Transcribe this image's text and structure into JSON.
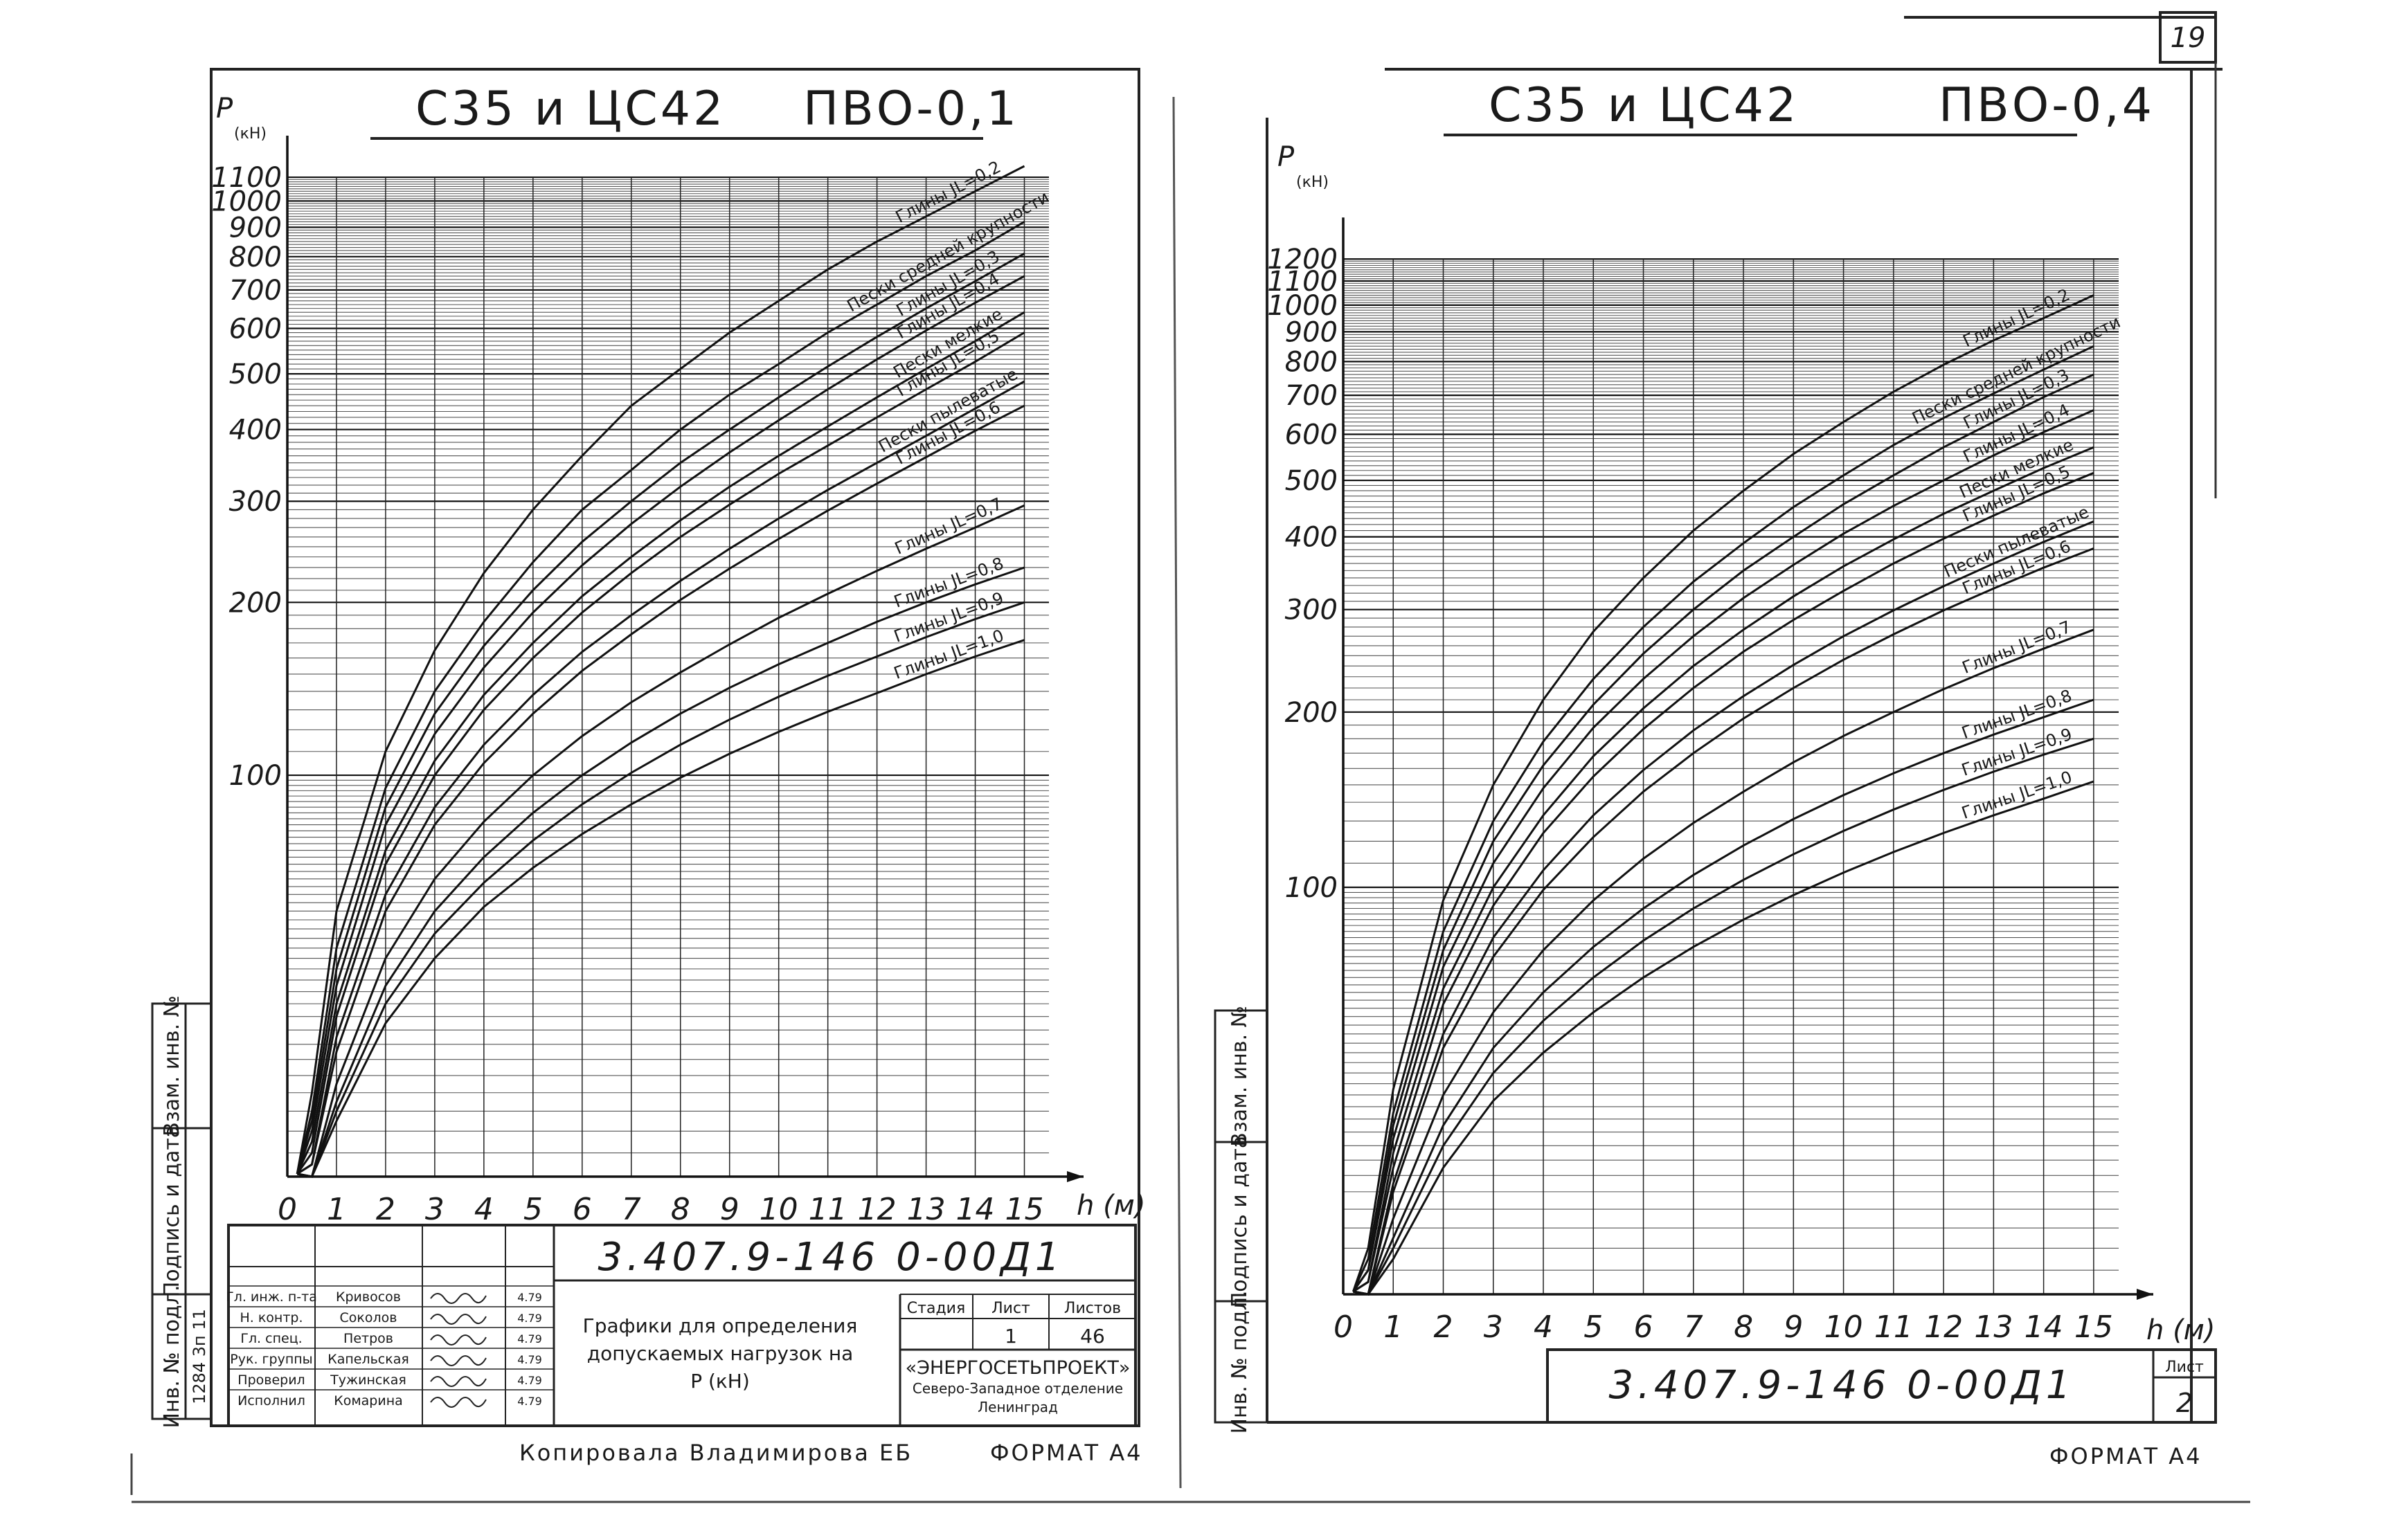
{
  "page": {
    "sheet_number": "19",
    "copied_by": "Копировала Владимирова ЕБ",
    "format_left": "ФОРМАТ А4",
    "format_right": "ФОРМАТ А4"
  },
  "left_sheet": {
    "title": "С35 и ЦС42",
    "mode": "ПВО-0,1",
    "document_code": "3.407.9-146 0-00Д1",
    "side_stamp": [
      "Взам. инв. №",
      "Подпись и дата",
      "Инв. № подл."
    ],
    "inventory_number": "1284 3п 11",
    "signatures": [
      {
        "role": "Гл. инж. п-та",
        "name": "Кривосов"
      },
      {
        "role": "Н. контр.",
        "name": "Соколов"
      },
      {
        "role": "Гл. спец.",
        "name": "Петров"
      },
      {
        "role": "Рук. группы",
        "name": "Капельская"
      },
      {
        "role": "Проверил",
        "name": "Тужинская"
      },
      {
        "role": "Исполнил",
        "name": "Комарина"
      }
    ],
    "sign_dates": [
      "4.79",
      "4.79",
      "4.79",
      "4.79",
      "4.79",
      "4.79"
    ],
    "sheet_title": [
      "Графики для определения",
      "допускаемых нагрузок на",
      "Р (кН)"
    ],
    "stage_label": "Стадия",
    "sheet_label": "Лист",
    "sheets_label": "Листов",
    "sheet_value": "1",
    "sheets_value": "46",
    "organization": "«ЭНЕРГОСЕТЬПРОЕКТ»",
    "org_dept": [
      "Северо-Западное отделение",
      "Ленинград"
    ]
  },
  "right_sheet": {
    "title": "С35 и ЦС42",
    "mode": "ПВО-0,4",
    "document_code": "3.407.9-146 0-00Д1",
    "side_stamp": [
      "Взам. инв. №",
      "Подпись и дата",
      "Инв. № подл."
    ],
    "sheet_label": "Лист",
    "sheet_value": "2"
  },
  "chart_data": [
    {
      "type": "line",
      "title": "С35 и ЦС42   ПВО-0,1",
      "ylabel": "P (кН)",
      "xlabel": "h (м)",
      "y_scale": "log",
      "x_ticks": [
        0,
        1,
        2,
        3,
        4,
        5,
        6,
        7,
        8,
        9,
        10,
        11,
        12,
        13,
        14,
        15
      ],
      "y_ticks": [
        100,
        200,
        300,
        400,
        500,
        600,
        700,
        800,
        900,
        1000,
        1100
      ],
      "xlim": [
        0,
        15.5
      ],
      "ylim": [
        20,
        1250
      ],
      "grid": true,
      "series": [
        {
          "name": "Глины JL=0,2",
          "x": [
            0.5,
            1,
            2,
            3,
            4,
            5,
            6,
            7,
            8,
            9,
            10,
            11,
            12,
            13,
            14,
            15
          ],
          "y": [
            28,
            58,
            110,
            165,
            225,
            290,
            360,
            440,
            510,
            590,
            670,
            760,
            850,
            940,
            1040,
            1150
          ]
        },
        {
          "name": "Пески средней крупности",
          "x": [
            0.5,
            1,
            2,
            3,
            4,
            5,
            6,
            7,
            8,
            9,
            10,
            11,
            12,
            13,
            14,
            15
          ],
          "y": [
            26,
            50,
            95,
            140,
            185,
            235,
            290,
            340,
            400,
            460,
            520,
            590,
            660,
            740,
            820,
            920
          ]
        },
        {
          "name": "Глины JL=0,3",
          "x": [
            0.5,
            1,
            2,
            3,
            4,
            5,
            6,
            7,
            8,
            9,
            10,
            11,
            12,
            13,
            14,
            15
          ],
          "y": [
            25,
            46,
            88,
            128,
            168,
            210,
            255,
            300,
            350,
            400,
            455,
            515,
            580,
            650,
            725,
            810
          ]
        },
        {
          "name": "Глины JL=0,4",
          "x": [
            0.5,
            1,
            2,
            3,
            4,
            5,
            6,
            7,
            8,
            9,
            10,
            11,
            12,
            13,
            14,
            15
          ],
          "y": [
            24,
            43,
            82,
            118,
            154,
            192,
            232,
            274,
            318,
            365,
            415,
            470,
            530,
            595,
            665,
            740
          ]
        },
        {
          "name": "Пески мелкие",
          "x": [
            0.5,
            1,
            2,
            3,
            4,
            5,
            6,
            7,
            8,
            9,
            10,
            11,
            12,
            13,
            14,
            15
          ],
          "y": [
            23,
            40,
            74,
            106,
            138,
            170,
            205,
            240,
            278,
            318,
            360,
            405,
            455,
            510,
            570,
            640
          ]
        },
        {
          "name": "Глины JL=0,5",
          "x": [
            0.5,
            1,
            2,
            3,
            4,
            5,
            6,
            7,
            8,
            9,
            10,
            11,
            12,
            13,
            14,
            15
          ],
          "y": [
            22,
            38,
            70,
            100,
            130,
            160,
            192,
            225,
            260,
            296,
            335,
            375,
            420,
            470,
            525,
            590
          ]
        },
        {
          "name": "Пески пылеватые",
          "x": [
            0.5,
            1,
            2,
            3,
            4,
            5,
            6,
            7,
            8,
            9,
            10,
            11,
            12,
            13,
            14,
            15
          ],
          "y": [
            21,
            35,
            62,
            88,
            113,
            138,
            164,
            190,
            218,
            248,
            280,
            314,
            350,
            390,
            435,
            485
          ]
        },
        {
          "name": "Глины JL=0,6",
          "x": [
            0.5,
            1,
            2,
            3,
            4,
            5,
            6,
            7,
            8,
            9,
            10,
            11,
            12,
            13,
            14,
            15
          ],
          "y": [
            21,
            33,
            58,
            82,
            105,
            128,
            152,
            176,
            202,
            229,
            258,
            289,
            322,
            358,
            398,
            440
          ]
        },
        {
          "name": "Глины JL=0,7",
          "x": [
            0.5,
            1,
            2,
            3,
            4,
            5,
            6,
            7,
            8,
            9,
            10,
            11,
            12,
            13,
            14,
            15
          ],
          "y": [
            20,
            29,
            48,
            66,
            83,
            100,
            117,
            134,
            151,
            169,
            188,
            207,
            227,
            248,
            270,
            295
          ]
        },
        {
          "name": "Глины JL=0,8",
          "x": [
            0.5,
            1,
            2,
            3,
            4,
            5,
            6,
            7,
            8,
            9,
            10,
            11,
            12,
            13,
            14,
            15
          ],
          "y": [
            20,
            27,
            43,
            58,
            72,
            86,
            100,
            114,
            128,
            142,
            156,
            170,
            185,
            200,
            215,
            230
          ]
        },
        {
          "name": "Глины JL=0,9",
          "x": [
            0.5,
            1,
            2,
            3,
            4,
            5,
            6,
            7,
            8,
            9,
            10,
            11,
            12,
            13,
            14,
            15
          ],
          "y": [
            20,
            26,
            40,
            53,
            65,
            77,
            89,
            101,
            113,
            125,
            137,
            149,
            161,
            174,
            187,
            200
          ]
        },
        {
          "name": "Глины JL=1,0",
          "x": [
            0.5,
            1,
            2,
            3,
            4,
            5,
            6,
            7,
            8,
            9,
            10,
            11,
            12,
            13,
            14,
            15
          ],
          "y": [
            20,
            25,
            37,
            48,
            59,
            69,
            79,
            89,
            99,
            109,
            119,
            129,
            139,
            150,
            161,
            172
          ]
        }
      ]
    },
    {
      "type": "line",
      "title": "С35 и ЦС42   ПВО-0,4",
      "ylabel": "P (кН)",
      "xlabel": "h (м)",
      "y_scale": "log",
      "x_ticks": [
        0,
        1,
        2,
        3,
        4,
        5,
        6,
        7,
        8,
        9,
        10,
        11,
        12,
        13,
        14,
        15
      ],
      "y_ticks": [
        100,
        200,
        300,
        400,
        500,
        600,
        700,
        800,
        900,
        1000,
        1100,
        1200
      ],
      "xlim": [
        0,
        15.5
      ],
      "ylim": [
        20,
        1300
      ],
      "grid": true,
      "series": [
        {
          "name": "Глины JL=0,2",
          "x": [
            0.5,
            1,
            2,
            3,
            4,
            5,
            6,
            7,
            8,
            9,
            10,
            11,
            12,
            13,
            14,
            15
          ],
          "y": [
            24,
            45,
            95,
            150,
            210,
            275,
            340,
            410,
            480,
            555,
            630,
            710,
            790,
            870,
            950,
            1040
          ]
        },
        {
          "name": "Пески средней крупности",
          "x": [
            0.5,
            1,
            2,
            3,
            4,
            5,
            6,
            7,
            8,
            9,
            10,
            11,
            12,
            13,
            14,
            15
          ],
          "y": [
            23,
            41,
            84,
            130,
            178,
            228,
            280,
            335,
            390,
            450,
            510,
            575,
            640,
            705,
            775,
            850
          ]
        },
        {
          "name": "Глины JL=0,3",
          "x": [
            0.5,
            1,
            2,
            3,
            4,
            5,
            6,
            7,
            8,
            9,
            10,
            11,
            12,
            13,
            14,
            15
          ],
          "y": [
            22,
            39,
            78,
            120,
            162,
            206,
            252,
            300,
            350,
            400,
            455,
            510,
            570,
            630,
            695,
            760
          ]
        },
        {
          "name": "Глины JL=0,4",
          "x": [
            0.5,
            1,
            2,
            3,
            4,
            5,
            6,
            7,
            8,
            9,
            10,
            11,
            12,
            13,
            14,
            15
          ],
          "y": [
            22,
            37,
            73,
            110,
            148,
            188,
            228,
            270,
            314,
            358,
            405,
            452,
            500,
            552,
            605,
            660
          ]
        },
        {
          "name": "Пески мелкие",
          "x": [
            0.5,
            1,
            2,
            3,
            4,
            5,
            6,
            7,
            8,
            9,
            10,
            11,
            12,
            13,
            14,
            15
          ],
          "y": [
            21,
            35,
            67,
            100,
            133,
            168,
            203,
            240,
            277,
            316,
            356,
            396,
            438,
            480,
            525,
            570
          ]
        },
        {
          "name": "Глины JL=0,5",
          "x": [
            0.5,
            1,
            2,
            3,
            4,
            5,
            6,
            7,
            8,
            9,
            10,
            11,
            12,
            13,
            14,
            15
          ],
          "y": [
            21,
            33,
            63,
            93,
            124,
            155,
            187,
            220,
            254,
            288,
            323,
            360,
            397,
            435,
            475,
            515
          ]
        },
        {
          "name": "Пески пылеватые",
          "x": [
            0.5,
            1,
            2,
            3,
            4,
            5,
            6,
            7,
            8,
            9,
            10,
            11,
            12,
            13,
            14,
            15
          ],
          "y": [
            20,
            31,
            56,
            82,
            107,
            133,
            159,
            186,
            213,
            241,
            270,
            299,
            329,
            360,
            392,
            425
          ]
        },
        {
          "name": "Глины JL=0,6",
          "x": [
            0.5,
            1,
            2,
            3,
            4,
            5,
            6,
            7,
            8,
            9,
            10,
            11,
            12,
            13,
            14,
            15
          ],
          "y": [
            20,
            30,
            53,
            76,
            99,
            122,
            146,
            170,
            195,
            220,
            246,
            272,
            299,
            326,
            354,
            382
          ]
        },
        {
          "name": "Глины JL=0,7",
          "x": [
            0.5,
            1,
            2,
            3,
            4,
            5,
            6,
            7,
            8,
            9,
            10,
            11,
            12,
            13,
            14,
            15
          ],
          "y": [
            20,
            27,
            44,
            61,
            78,
            95,
            112,
            129,
            146,
            164,
            182,
            200,
            219,
            238,
            257,
            277
          ]
        },
        {
          "name": "Глины JL=0,8",
          "x": [
            0.5,
            1,
            2,
            3,
            4,
            5,
            6,
            7,
            8,
            9,
            10,
            11,
            12,
            13,
            14,
            15
          ],
          "y": [
            20,
            25,
            39,
            53,
            66,
            79,
            92,
            105,
            118,
            131,
            144,
            157,
            170,
            183,
            196,
            210
          ]
        },
        {
          "name": "Глины JL=0,9",
          "x": [
            0.5,
            1,
            2,
            3,
            4,
            5,
            6,
            7,
            8,
            9,
            10,
            11,
            12,
            13,
            14,
            15
          ],
          "y": [
            20,
            24,
            36,
            48,
            59,
            70,
            81,
            92,
            103,
            114,
            125,
            136,
            147,
            158,
            169,
            180
          ]
        },
        {
          "name": "Глины JL=1,0",
          "x": [
            0.5,
            1,
            2,
            3,
            4,
            5,
            6,
            7,
            8,
            9,
            10,
            11,
            12,
            13,
            14,
            15
          ],
          "y": [
            20,
            23,
            33,
            43,
            52,
            61,
            70,
            79,
            88,
            97,
            106,
            115,
            124,
            133,
            142,
            152
          ]
        }
      ]
    }
  ]
}
